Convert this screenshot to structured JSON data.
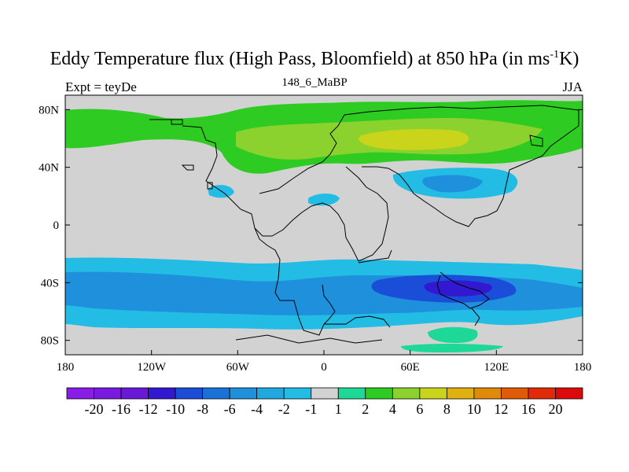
{
  "title": {
    "main": "Eddy Temperature flux (High Pass, Bloomfield) at 850 hPa (in ms",
    "sup": "-1",
    "tail": "K)"
  },
  "left_label": "Expt = teyDe",
  "center_label": "148_6_MaBP",
  "right_label": "JJA",
  "map": {
    "lon_ticks": [
      "180",
      "120W",
      "60W",
      "0",
      "60E",
      "120E",
      "180"
    ],
    "lat_ticks": [
      "80N",
      "40N",
      "0",
      "40S",
      "80S"
    ]
  },
  "colorbar": {
    "labels": [
      "-20",
      "-16",
      "-12",
      "-10",
      "-8",
      "-6",
      "-4",
      "-2",
      "-1",
      "1",
      "2",
      "4",
      "6",
      "8",
      "10",
      "12",
      "16",
      "20"
    ],
    "colors": [
      "#8a1ce8",
      "#7a1ae0",
      "#6a18d8",
      "#3218d0",
      "#1a4ed8",
      "#1a72d8",
      "#1e90dc",
      "#22a8e0",
      "#22bce4",
      "#d2d2d2",
      "#1ed898",
      "#2ecc22",
      "#8cd22e",
      "#cad41a",
      "#e0b00e",
      "#e08a0a",
      "#e05a08",
      "#e02a08",
      "#dc0a0a"
    ]
  },
  "colors": {
    "land_gray": "#d2d2d2",
    "green": "#2ecc22",
    "light_green": "#8cd22e",
    "yellow": "#cad41a",
    "blue": "#1e90dc",
    "light_blue": "#22bce4",
    "dark_blue": "#1a4ed8",
    "deep_blue": "#3218d0",
    "teal": "#1ed898"
  }
}
